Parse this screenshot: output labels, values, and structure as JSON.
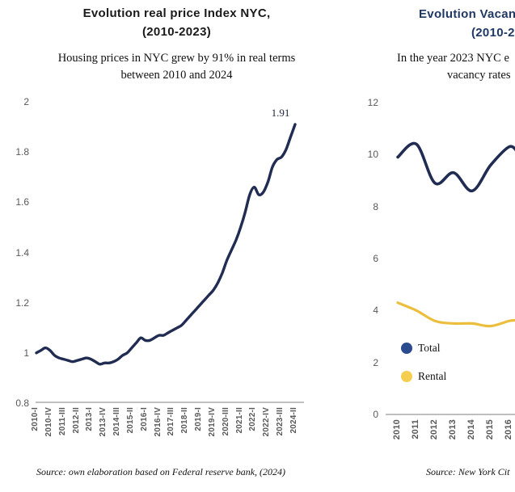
{
  "colors": {
    "navy_line": "#202c52",
    "legend_blue": "#2b4b8f",
    "yellow_line": "#ecbe3e",
    "legend_yellow": "#f6ce4f",
    "axis_line": "#bfbfbf",
    "tick_text": "#595959",
    "right_title": "#1f3864"
  },
  "left_chart": {
    "title_line1": "Evolution real price Index NYC,",
    "title_line2": "(2010-2023)",
    "subtitle_line1": "Housing prices in NYC grew by 91% in real terms",
    "subtitle_line2": "between 2010 and 2024",
    "end_label": "1.91",
    "y_tick_labels": [
      "2",
      "1.8",
      "1.6",
      "1.4",
      "1.2",
      "1",
      "0.8"
    ],
    "y_tick_values": [
      2,
      1.8,
      1.6,
      1.4,
      1.2,
      1,
      0.8
    ],
    "x_tick_labels": [
      "2010-I",
      "2010-IV",
      "2011-III",
      "2012-II",
      "2013-I",
      "2013-IV",
      "2014-III",
      "2015-II",
      "2016-I",
      "2016-IV",
      "2017-III",
      "2018-II",
      "2019-I",
      "2019-IV",
      "2020-III",
      "2021-II",
      "2022-I",
      "2022-IV",
      "2023-III",
      "2024-II"
    ],
    "source": "Source: own elaboration based on Federal reserve bank, (2024)"
  },
  "right_chart": {
    "title_line1_visible": "Evolution Vacan",
    "title_line2_visible": "(2010-2",
    "subtitle_line1_visible": "In the year 2023 NYC e",
    "subtitle_line2_visible": "vacancy rates",
    "y_tick_labels": [
      "12",
      "10",
      "8",
      "6",
      "4",
      "2",
      "0"
    ],
    "y_tick_values": [
      12,
      10,
      8,
      6,
      4,
      2,
      0
    ],
    "x_tick_labels": [
      "2010",
      "2011",
      "2012",
      "2013",
      "2014",
      "2015",
      "2016"
    ],
    "legend": [
      {
        "label": "Total",
        "color": "#2b4b8f"
      },
      {
        "label": "Rental",
        "color": "#f6ce4f"
      }
    ],
    "source_visible": "Source: New York Cit"
  },
  "chart_data": [
    {
      "type": "line",
      "title": "Evolution real price Index NYC, (2010-2023)",
      "subtitle": "Housing prices in NYC grew by 91% in real terms between 2010 and 2024",
      "xlabel": "",
      "ylabel": "",
      "ylim": [
        0.8,
        2
      ],
      "grid": false,
      "line_color": "#202c52",
      "end_point_label": "1.91",
      "x": [
        "2010-I",
        "2010-II",
        "2010-III",
        "2010-IV",
        "2011-I",
        "2011-II",
        "2011-III",
        "2011-IV",
        "2012-I",
        "2012-II",
        "2012-III",
        "2012-IV",
        "2013-I",
        "2013-II",
        "2013-III",
        "2013-IV",
        "2014-I",
        "2014-II",
        "2014-III",
        "2014-IV",
        "2015-I",
        "2015-II",
        "2015-III",
        "2015-IV",
        "2016-I",
        "2016-II",
        "2016-III",
        "2016-IV",
        "2017-I",
        "2017-II",
        "2017-III",
        "2017-IV",
        "2018-I",
        "2018-II",
        "2018-III",
        "2018-IV",
        "2019-I",
        "2019-II",
        "2019-III",
        "2019-IV",
        "2020-I",
        "2020-II",
        "2020-III",
        "2020-IV",
        "2021-I",
        "2021-II",
        "2021-III",
        "2021-IV",
        "2022-I",
        "2022-II",
        "2022-III",
        "2022-IV",
        "2023-I",
        "2023-II",
        "2023-III",
        "2023-IV",
        "2024-I",
        "2024-II"
      ],
      "values": [
        1.0,
        1.01,
        1.02,
        1.01,
        0.99,
        0.98,
        0.975,
        0.97,
        0.965,
        0.97,
        0.975,
        0.98,
        0.975,
        0.965,
        0.955,
        0.96,
        0.96,
        0.965,
        0.975,
        0.99,
        1.0,
        1.02,
        1.04,
        1.06,
        1.05,
        1.05,
        1.06,
        1.07,
        1.07,
        1.08,
        1.09,
        1.1,
        1.11,
        1.13,
        1.15,
        1.17,
        1.19,
        1.21,
        1.23,
        1.25,
        1.28,
        1.32,
        1.37,
        1.41,
        1.45,
        1.5,
        1.56,
        1.63,
        1.66,
        1.63,
        1.64,
        1.68,
        1.74,
        1.77,
        1.78,
        1.81,
        1.86,
        1.91
      ],
      "source": "Source: own elaboration based on Federal reserve bank, (2024)"
    },
    {
      "type": "line",
      "title_visible": "Evolution Vacan (2010-2",
      "subtitle_visible": "In the year 2023 NYC e / vacancy rates",
      "note": "chart truncated at right edge of screenshot; values beyond 2016 not visible",
      "ylim": [
        0,
        12
      ],
      "grid": false,
      "legend_position": "inside-left",
      "x": [
        "2010",
        "2011",
        "2012",
        "2013",
        "2014",
        "2015",
        "2016"
      ],
      "series": [
        {
          "name": "Total",
          "color": "#202c52",
          "values": [
            9.9,
            10.4,
            8.9,
            9.3,
            8.6,
            9.6,
            10.3
          ]
        },
        {
          "name": "Rental",
          "color": "#ecbe3e",
          "values": [
            4.3,
            4.0,
            3.6,
            3.5,
            3.5,
            3.4,
            3.6
          ]
        }
      ],
      "source_visible": "Source: New York Cit"
    }
  ]
}
